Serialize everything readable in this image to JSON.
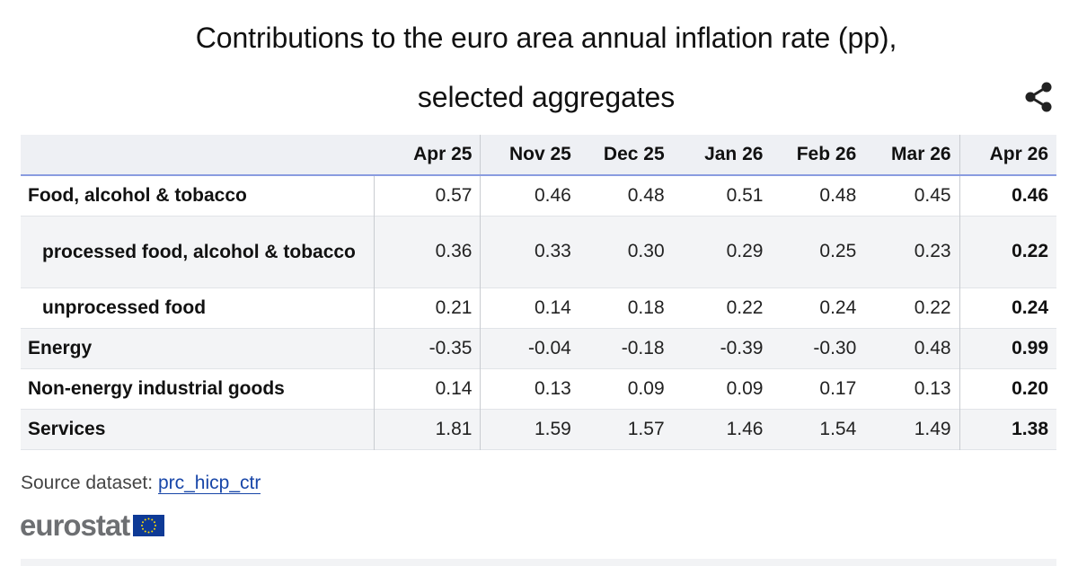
{
  "title_line1": "Contributions to the euro area annual inflation rate (pp),",
  "title_line2": "selected aggregates",
  "share_icon": "share-icon",
  "table": {
    "columns": [
      "Apr 25",
      "Nov 25",
      "Dec 25",
      "Jan 26",
      "Feb 26",
      "Mar 26",
      "Apr 26"
    ],
    "rows": [
      {
        "label": "Food, alcohol & tobacco",
        "values": [
          "0.57",
          "0.46",
          "0.48",
          "0.51",
          "0.48",
          "0.45",
          "0.46"
        ]
      },
      {
        "label": "processed food, alcohol & tobacco",
        "values": [
          "0.36",
          "0.33",
          "0.30",
          "0.29",
          "0.25",
          "0.23",
          "0.22"
        ]
      },
      {
        "label": "unprocessed food",
        "values": [
          "0.21",
          "0.14",
          "0.18",
          "0.22",
          "0.24",
          "0.22",
          "0.24"
        ]
      },
      {
        "label": "Energy",
        "values": [
          "-0.35",
          "-0.04",
          "-0.18",
          "-0.39",
          "-0.30",
          "0.48",
          "0.99"
        ]
      },
      {
        "label": "Non-energy industrial goods",
        "values": [
          "0.14",
          "0.13",
          "0.09",
          "0.09",
          "0.17",
          "0.13",
          "0.20"
        ]
      },
      {
        "label": "Services",
        "values": [
          "1.81",
          "1.59",
          "1.57",
          "1.46",
          "1.54",
          "1.49",
          "1.38"
        ]
      }
    ]
  },
  "source": {
    "prefix": "Source dataset: ",
    "link": "prc_hicp_ctr"
  },
  "logo": {
    "text": "eurostat",
    "flag_color": "#0e3a96",
    "star_color": "#ffdd00"
  },
  "colors": {
    "header_bg": "#eef0f4",
    "header_rule": "#8a9ce0",
    "link": "#1846a8"
  }
}
